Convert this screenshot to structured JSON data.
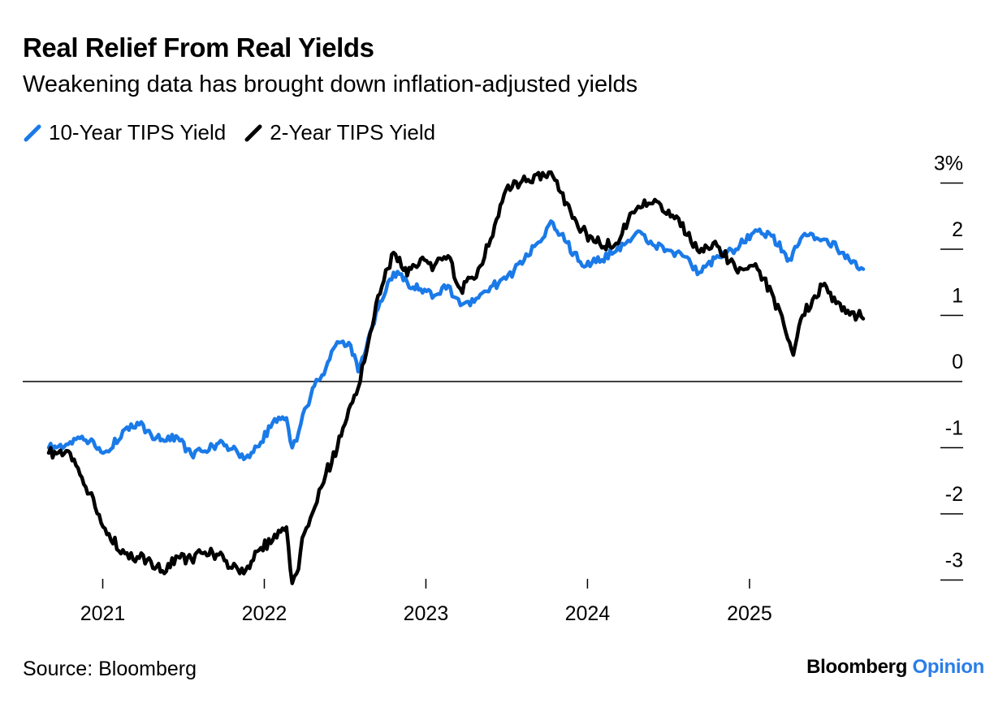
{
  "title": "Real Relief From Real Yields",
  "subtitle": "Weakening data has brought down inflation-adjusted yields",
  "source": "Source: Bloomberg",
  "brand": {
    "name": "Bloomberg",
    "suffix": "Opinion",
    "suffix_color": "#2b7de9"
  },
  "colors": {
    "tips10": "#1a7ae8",
    "tips2": "#000000"
  },
  "chart_data": {
    "type": "line",
    "title": "Real Relief From Real Yields",
    "subtitle": "Weakening data has brought down inflation-adjusted yields",
    "xlabel": "",
    "ylabel": "",
    "x_tick_labels": [
      "2021",
      "2022",
      "2023",
      "2024",
      "2025"
    ],
    "y_tick_labels": [
      "3%",
      "2",
      "1",
      "0",
      "-1",
      "-2",
      "-3"
    ],
    "y_tick_values": [
      3,
      2,
      1,
      0,
      -1,
      -2,
      -3
    ],
    "ylim": [
      -3.1,
      3.35
    ],
    "xlim": [
      "2020-09",
      "2025-12"
    ],
    "grid": false,
    "legend_position": "top-left",
    "series": [
      {
        "name": "10-Year TIPS Yield",
        "color": "#1a7ae8",
        "points": [
          [
            "2020-09-01",
            -1.0
          ],
          [
            "2020-10-15",
            -0.95
          ],
          [
            "2020-11-15",
            -0.83
          ],
          [
            "2020-12-15",
            -0.98
          ],
          [
            "2021-01-10",
            -1.05
          ],
          [
            "2021-02-20",
            -0.72
          ],
          [
            "2021-03-20",
            -0.62
          ],
          [
            "2021-04-20",
            -0.8
          ],
          [
            "2021-05-20",
            -0.9
          ],
          [
            "2021-06-20",
            -0.85
          ],
          [
            "2021-07-20",
            -1.1
          ],
          [
            "2021-08-20",
            -1.05
          ],
          [
            "2021-09-20",
            -0.93
          ],
          [
            "2021-10-20",
            -1.02
          ],
          [
            "2021-11-20",
            -1.15
          ],
          [
            "2021-12-20",
            -0.98
          ],
          [
            "2022-01-20",
            -0.62
          ],
          [
            "2022-02-20",
            -0.55
          ],
          [
            "2022-03-05",
            -1.0
          ],
          [
            "2022-03-20",
            -0.75
          ],
          [
            "2022-04-20",
            -0.1
          ],
          [
            "2022-05-20",
            0.2
          ],
          [
            "2022-06-15",
            0.6
          ],
          [
            "2022-07-15",
            0.55
          ],
          [
            "2022-08-01",
            0.15
          ],
          [
            "2022-08-15",
            0.4
          ],
          [
            "2022-09-15",
            1.1
          ],
          [
            "2022-10-20",
            1.65
          ],
          [
            "2022-11-20",
            1.5
          ],
          [
            "2022-12-20",
            1.4
          ],
          [
            "2023-01-20",
            1.3
          ],
          [
            "2023-02-20",
            1.45
          ],
          [
            "2023-03-20",
            1.15
          ],
          [
            "2023-04-20",
            1.2
          ],
          [
            "2023-06-01",
            1.45
          ],
          [
            "2023-07-01",
            1.55
          ],
          [
            "2023-08-20",
            1.9
          ],
          [
            "2023-10-15",
            2.4
          ],
          [
            "2023-11-15",
            2.1
          ],
          [
            "2023-12-20",
            1.75
          ],
          [
            "2024-01-20",
            1.8
          ],
          [
            "2024-03-01",
            1.95
          ],
          [
            "2024-04-20",
            2.25
          ],
          [
            "2024-06-01",
            2.05
          ],
          [
            "2024-07-20",
            1.95
          ],
          [
            "2024-09-10",
            1.65
          ],
          [
            "2024-10-20",
            1.9
          ],
          [
            "2024-12-01",
            2.0
          ],
          [
            "2025-01-10",
            2.25
          ],
          [
            "2025-02-20",
            2.2
          ],
          [
            "2025-04-01",
            1.85
          ],
          [
            "2025-05-01",
            2.2
          ],
          [
            "2025-06-20",
            2.15
          ],
          [
            "2025-08-01",
            1.95
          ],
          [
            "2025-09-15",
            1.7
          ]
        ]
      },
      {
        "name": "2-Year TIPS Yield",
        "color": "#000000",
        "points": [
          [
            "2020-09-01",
            -1.08
          ],
          [
            "2020-10-15",
            -1.05
          ],
          [
            "2020-11-15",
            -1.45
          ],
          [
            "2020-12-15",
            -1.9
          ],
          [
            "2021-01-15",
            -2.3
          ],
          [
            "2021-02-20",
            -2.6
          ],
          [
            "2021-03-20",
            -2.65
          ],
          [
            "2021-04-20",
            -2.72
          ],
          [
            "2021-05-20",
            -2.9
          ],
          [
            "2021-06-20",
            -2.65
          ],
          [
            "2021-07-20",
            -2.68
          ],
          [
            "2021-08-20",
            -2.58
          ],
          [
            "2021-09-20",
            -2.62
          ],
          [
            "2021-10-20",
            -2.82
          ],
          [
            "2021-11-20",
            -2.85
          ],
          [
            "2021-12-20",
            -2.55
          ],
          [
            "2022-01-20",
            -2.4
          ],
          [
            "2022-02-20",
            -2.2
          ],
          [
            "2022-03-05",
            -3.05
          ],
          [
            "2022-03-15",
            -2.9
          ],
          [
            "2022-04-01",
            -2.3
          ],
          [
            "2022-04-25",
            -1.9
          ],
          [
            "2022-05-20",
            -1.4
          ],
          [
            "2022-06-15",
            -1.0
          ],
          [
            "2022-07-15",
            -0.35
          ],
          [
            "2022-08-01",
            -0.1
          ],
          [
            "2022-08-15",
            0.3
          ],
          [
            "2022-09-15",
            1.3
          ],
          [
            "2022-10-20",
            1.95
          ],
          [
            "2022-11-20",
            1.6
          ],
          [
            "2022-12-20",
            1.85
          ],
          [
            "2023-01-20",
            1.75
          ],
          [
            "2023-02-20",
            1.9
          ],
          [
            "2023-03-20",
            1.4
          ],
          [
            "2023-04-20",
            1.55
          ],
          [
            "2023-06-01",
            2.2
          ],
          [
            "2023-07-01",
            2.9
          ],
          [
            "2023-08-20",
            3.05
          ],
          [
            "2023-10-15",
            3.1
          ],
          [
            "2023-11-15",
            2.7
          ],
          [
            "2023-12-20",
            2.3
          ],
          [
            "2024-01-20",
            2.1
          ],
          [
            "2024-03-01",
            2.05
          ],
          [
            "2024-04-20",
            2.6
          ],
          [
            "2024-06-01",
            2.75
          ],
          [
            "2024-07-20",
            2.5
          ],
          [
            "2024-09-10",
            1.95
          ],
          [
            "2024-10-20",
            2.05
          ],
          [
            "2024-12-01",
            1.7
          ],
          [
            "2025-01-10",
            1.75
          ],
          [
            "2025-02-20",
            1.35
          ],
          [
            "2025-03-20",
            0.85
          ],
          [
            "2025-04-10",
            0.4
          ],
          [
            "2025-05-01",
            1.0
          ],
          [
            "2025-06-15",
            1.45
          ],
          [
            "2025-07-20",
            1.2
          ],
          [
            "2025-08-20",
            1.05
          ],
          [
            "2025-09-15",
            0.95
          ]
        ]
      }
    ]
  }
}
